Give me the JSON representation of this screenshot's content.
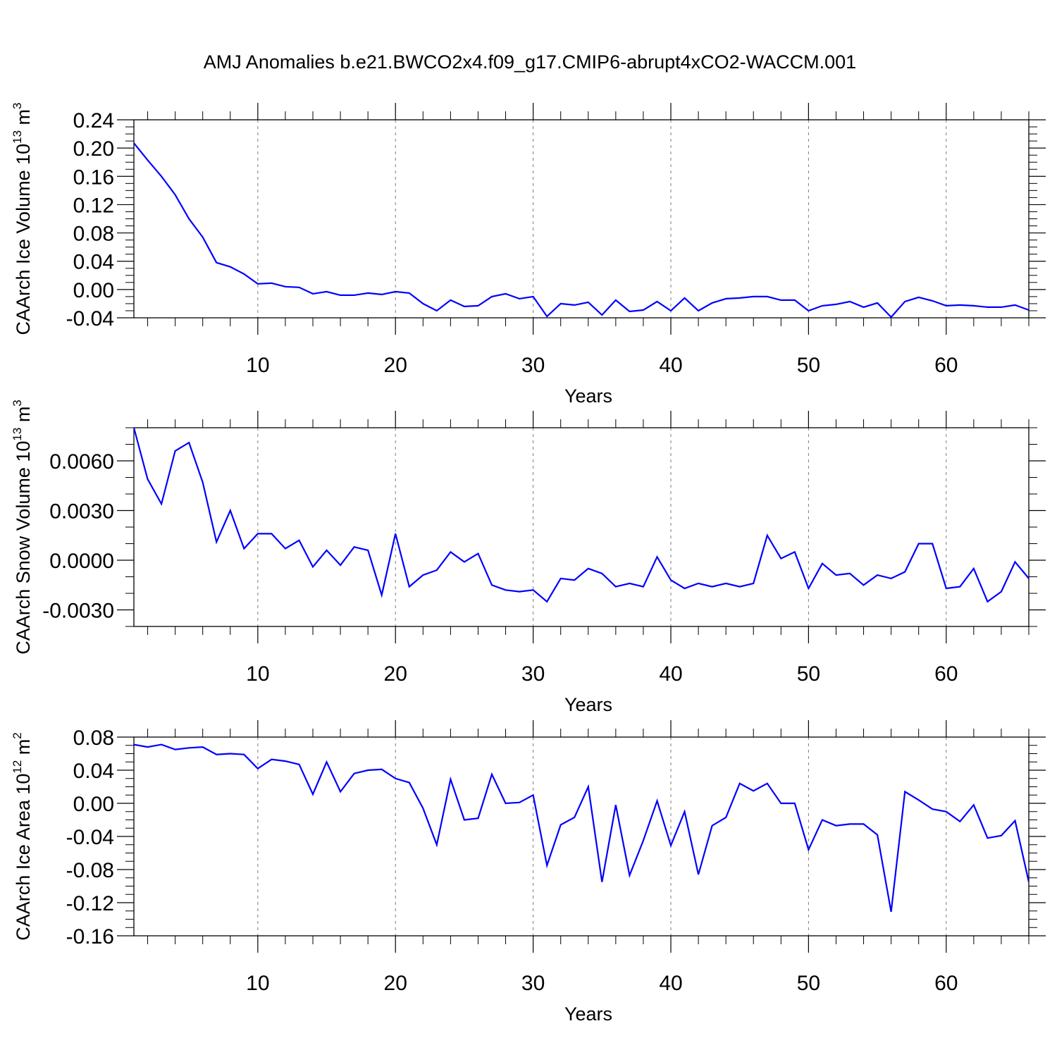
{
  "figure": {
    "title": "AMJ Anomalies b.e21.BWCO2x4.f09_g17.CMIP6-abrupt4xCO2-WACCM.001"
  },
  "chart_data": [
    {
      "type": "line",
      "title": "AMJ Anomalies b.e21.BWCO2x4.f09_g17.CMIP6-abrupt4xCO2-WACCM.001",
      "xlabel": "Years",
      "ylabel_text": "CAArch Ice Volume 10",
      "ylabel_exp": "13",
      "ylabel_unit": " m",
      "ylabel_unit_exp": "3",
      "xlim": [
        1,
        66
      ],
      "ylim": [
        -0.04,
        0.24
      ],
      "xticks": [
        10,
        20,
        30,
        40,
        50,
        60
      ],
      "xtick_labels": [
        "10",
        "20",
        "30",
        "40",
        "50",
        "60"
      ],
      "yticks": [
        -0.04,
        0.0,
        0.04,
        0.08,
        0.12,
        0.16,
        0.2,
        0.24
      ],
      "ytick_labels": [
        "-0.04",
        "0.00",
        "0.04",
        "0.08",
        "0.12",
        "0.16",
        "0.20",
        "0.24"
      ],
      "yminor": 0.01,
      "grid": "dashed vertical at major x ticks",
      "series": [
        {
          "name": "CAArch Ice Volume",
          "color": "#0000ff",
          "x": [
            1,
            2,
            3,
            4,
            5,
            6,
            7,
            8,
            9,
            10,
            11,
            12,
            13,
            14,
            15,
            16,
            17,
            18,
            19,
            20,
            21,
            22,
            23,
            24,
            25,
            26,
            27,
            28,
            29,
            30,
            31,
            32,
            33,
            34,
            35,
            36,
            37,
            38,
            39,
            40,
            41,
            42,
            43,
            44,
            45,
            46,
            47,
            48,
            49,
            50,
            51,
            52,
            53,
            54,
            55,
            56,
            57,
            58,
            59,
            60,
            61,
            62,
            63,
            64,
            65,
            66
          ],
          "values": [
            0.207,
            0.183,
            0.16,
            0.134,
            0.1,
            0.074,
            0.038,
            0.032,
            0.022,
            0.008,
            0.009,
            0.004,
            0.003,
            -0.006,
            -0.003,
            -0.008,
            -0.008,
            -0.005,
            -0.007,
            -0.003,
            -0.005,
            -0.02,
            -0.03,
            -0.015,
            -0.024,
            -0.023,
            -0.01,
            -0.006,
            -0.013,
            -0.01,
            -0.038,
            -0.02,
            -0.022,
            -0.018,
            -0.036,
            -0.015,
            -0.031,
            -0.029,
            -0.017,
            -0.03,
            -0.012,
            -0.03,
            -0.019,
            -0.013,
            -0.012,
            -0.01,
            -0.01,
            -0.015,
            -0.015,
            -0.03,
            -0.023,
            -0.021,
            -0.017,
            -0.025,
            -0.019,
            -0.039,
            -0.017,
            -0.011,
            -0.016,
            -0.023,
            -0.022,
            -0.023,
            -0.025,
            -0.025,
            -0.022,
            -0.029
          ]
        }
      ]
    },
    {
      "type": "line",
      "xlabel": "Years",
      "ylabel_text": "CAArch Snow Volume 10",
      "ylabel_exp": "13",
      "ylabel_unit": " m",
      "ylabel_unit_exp": "3",
      "xlim": [
        1,
        66
      ],
      "ylim": [
        -0.004,
        0.008
      ],
      "xticks": [
        10,
        20,
        30,
        40,
        50,
        60
      ],
      "xtick_labels": [
        "10",
        "20",
        "30",
        "40",
        "50",
        "60"
      ],
      "yticks": [
        -0.003,
        0.0,
        0.003,
        0.006
      ],
      "ytick_labels": [
        "-0.0030",
        "0.0000",
        "0.0030",
        "0.0060"
      ],
      "yminor": 0.001,
      "grid": "dashed vertical at major x ticks",
      "series": [
        {
          "name": "CAArch Snow Volume",
          "color": "#0000ff",
          "x": [
            1,
            2,
            3,
            4,
            5,
            6,
            7,
            8,
            9,
            10,
            11,
            12,
            13,
            14,
            15,
            16,
            17,
            18,
            19,
            20,
            21,
            22,
            23,
            24,
            25,
            26,
            27,
            28,
            29,
            30,
            31,
            32,
            33,
            34,
            35,
            36,
            37,
            38,
            39,
            40,
            41,
            42,
            43,
            44,
            45,
            46,
            47,
            48,
            49,
            50,
            51,
            52,
            53,
            54,
            55,
            56,
            57,
            58,
            59,
            60,
            61,
            62,
            63,
            64,
            65,
            66
          ],
          "values": [
            0.008,
            0.0049,
            0.0034,
            0.0066,
            0.0071,
            0.0047,
            0.0011,
            0.003,
            0.0007,
            0.0016,
            0.0016,
            0.0007,
            0.0012,
            -0.0004,
            0.0006,
            -0.0003,
            0.0008,
            0.0006,
            -0.0021,
            0.0016,
            -0.0016,
            -0.0009,
            -0.0006,
            0.0005,
            -0.0001,
            0.0004,
            -0.0015,
            -0.0018,
            -0.0019,
            -0.0018,
            -0.0025,
            -0.0011,
            -0.0012,
            -0.0005,
            -0.0008,
            -0.0016,
            -0.0014,
            -0.0016,
            0.0002,
            -0.0012,
            -0.0017,
            -0.0014,
            -0.0016,
            -0.0014,
            -0.0016,
            -0.0014,
            0.0015,
            0.0001,
            0.0005,
            -0.0017,
            -0.0002,
            -0.0009,
            -0.0008,
            -0.0015,
            -0.0009,
            -0.0011,
            -0.0007,
            0.001,
            0.001,
            -0.0017,
            -0.0016,
            -0.0005,
            -0.0025,
            -0.0019,
            -0.0001,
            -0.0011
          ]
        }
      ]
    },
    {
      "type": "line",
      "xlabel": "Years",
      "ylabel_text": "CAArch Ice Area 10",
      "ylabel_exp": "12",
      "ylabel_unit": " m",
      "ylabel_unit_exp": "2",
      "xlim": [
        1,
        66
      ],
      "ylim": [
        -0.16,
        0.08
      ],
      "xticks": [
        10,
        20,
        30,
        40,
        50,
        60
      ],
      "xtick_labels": [
        "10",
        "20",
        "30",
        "40",
        "50",
        "60"
      ],
      "yticks": [
        -0.16,
        -0.12,
        -0.08,
        -0.04,
        0.0,
        0.04,
        0.08
      ],
      "ytick_labels": [
        "-0.16",
        "-0.12",
        "-0.08",
        "-0.04",
        "0.00",
        "0.04",
        "0.08"
      ],
      "yminor": 0.01,
      "grid": "dashed vertical at major x ticks",
      "series": [
        {
          "name": "CAArch Ice Area",
          "color": "#0000ff",
          "x": [
            1,
            2,
            3,
            4,
            5,
            6,
            7,
            8,
            9,
            10,
            11,
            12,
            13,
            14,
            15,
            16,
            17,
            18,
            19,
            20,
            21,
            22,
            23,
            24,
            25,
            26,
            27,
            28,
            29,
            30,
            31,
            32,
            33,
            34,
            35,
            36,
            37,
            38,
            39,
            40,
            41,
            42,
            43,
            44,
            45,
            46,
            47,
            48,
            49,
            50,
            51,
            52,
            53,
            54,
            55,
            56,
            57,
            58,
            59,
            60,
            61,
            62,
            63,
            64,
            65,
            66
          ],
          "values": [
            0.071,
            0.068,
            0.071,
            0.065,
            0.067,
            0.068,
            0.059,
            0.06,
            0.059,
            0.042,
            0.053,
            0.051,
            0.047,
            0.011,
            0.05,
            0.014,
            0.036,
            0.04,
            0.041,
            0.03,
            0.025,
            -0.006,
            -0.05,
            0.029,
            -0.02,
            -0.018,
            0.035,
            0.0,
            0.001,
            0.01,
            -0.075,
            -0.026,
            -0.017,
            0.02,
            -0.095,
            -0.002,
            -0.087,
            -0.045,
            0.003,
            -0.051,
            -0.01,
            -0.086,
            -0.027,
            -0.017,
            0.024,
            0.015,
            0.024,
            0.0,
            0.0,
            -0.056,
            -0.02,
            -0.027,
            -0.025,
            -0.025,
            -0.038,
            -0.131,
            0.014,
            0.004,
            -0.007,
            -0.01,
            -0.022,
            -0.002,
            -0.042,
            -0.039,
            -0.021,
            -0.095
          ]
        }
      ]
    }
  ]
}
